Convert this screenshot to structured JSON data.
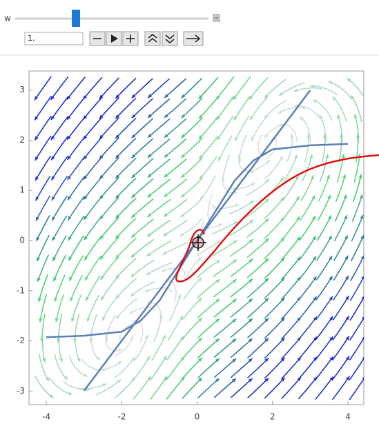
{
  "controls": {
    "label": "w",
    "input": "1."
  },
  "plot": {
    "xlim": [
      -4.46,
      4.42
    ],
    "ylim": [
      -3.27,
      3.38
    ],
    "xticks": [
      -4,
      -2,
      0,
      2,
      4
    ],
    "yticks": [
      -3,
      -2,
      -1,
      0,
      1,
      2,
      3
    ]
  }
}
